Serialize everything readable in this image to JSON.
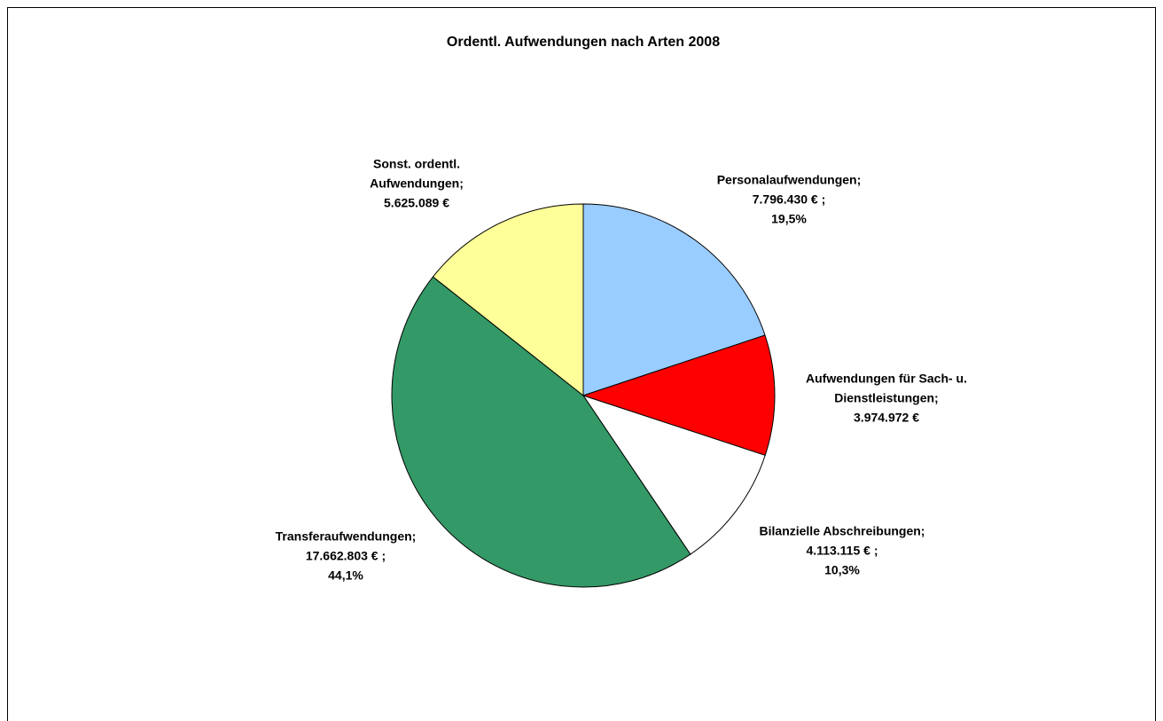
{
  "chart_data": {
    "type": "pie",
    "title": "Ordentl. Aufwendungen nach Arten 2008",
    "values": [
      7796430,
      3974972,
      4113115,
      17662803,
      5625089
    ],
    "value_labels": [
      [
        "Personalaufwendungen;",
        "7.796.430 € ;",
        "19,5%"
      ],
      [
        "Aufwendungen für Sach- u.",
        "Dienstleistungen;",
        "3.974.972 €"
      ],
      [
        "Bilanzielle Abschreibungen;",
        "4.113.115 € ;",
        "10,3%"
      ],
      [
        "Transferaufwendungen;",
        "17.662.803 € ;",
        "44,1%"
      ],
      [
        "Sonst. ordentl.",
        "Aufwendungen;",
        "5.625.089 €"
      ]
    ],
    "colors": [
      "#99ccff",
      "#ff0000",
      "#ffffff",
      "#339966",
      "#ffff99"
    ]
  }
}
